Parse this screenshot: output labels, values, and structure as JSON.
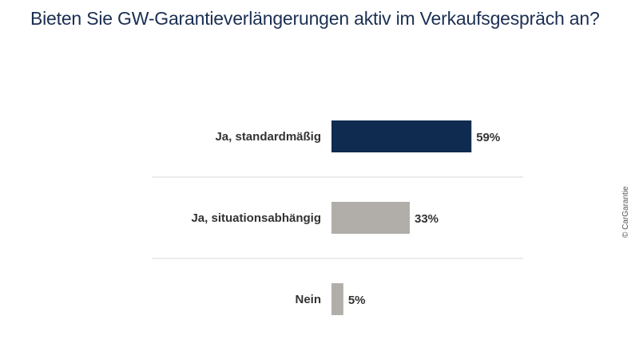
{
  "chart_data": {
    "type": "bar",
    "orientation": "horizontal",
    "title": "Bieten Sie GW-Garantieverlängerungen aktiv im Verkaufsgespräch an?",
    "categories": [
      "Ja, standardmäßig",
      "Ja, situationsabhängig",
      "Nein"
    ],
    "values": [
      59,
      33,
      5
    ],
    "value_labels": [
      "59%",
      "33%",
      "5%"
    ],
    "unit": "%",
    "xlim": [
      0,
      100
    ],
    "bar_colors": [
      "#0f2b4f",
      "#b1aea9",
      "#b1aea9"
    ],
    "separator_color": "#d9d9d9",
    "grid": false,
    "legend": "none"
  },
  "source": "© CarGarantie"
}
